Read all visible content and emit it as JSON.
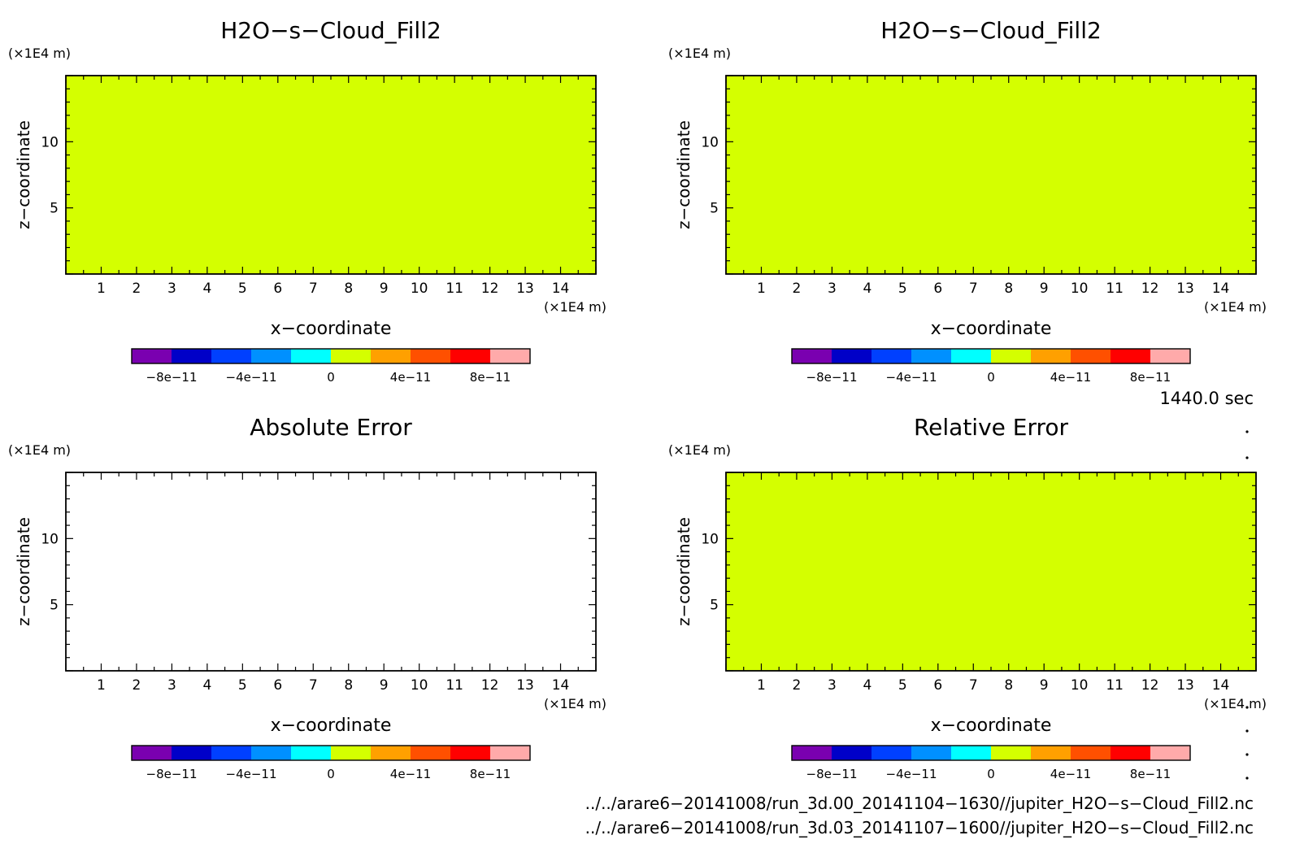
{
  "chart_data": [
    {
      "type": "heatmap",
      "title": "H2O−s−Cloud_Fill2",
      "xlabel": "x−coordinate",
      "ylabel": "z−coordinate",
      "x_unit": "(×1E4 m)",
      "y_unit": "(×1E4 m)",
      "xlim": [
        0,
        15
      ],
      "ylim": [
        0,
        15
      ],
      "x_ticks": [
        "1",
        "2",
        "3",
        "4",
        "5",
        "6",
        "7",
        "8",
        "9",
        "10",
        "11",
        "12",
        "13",
        "14"
      ],
      "y_ticks": [
        "5",
        "10"
      ],
      "field_value": 0,
      "fill_color": "#d4ff00",
      "colorbar": {
        "colors": [
          "#7a00b0",
          "#0000c8",
          "#0040ff",
          "#0090ff",
          "#00ffff",
          "#d4ff00",
          "#ffa000",
          "#ff5000",
          "#ff0000",
          "#ffaaaa"
        ],
        "labels": [
          "−8e−11",
          "−4e−11",
          "0",
          "4e−11",
          "8e−11"
        ]
      }
    },
    {
      "type": "heatmap",
      "title": "H2O−s−Cloud_Fill2",
      "xlabel": "x−coordinate",
      "ylabel": "z−coordinate",
      "x_unit": "(×1E4 m)",
      "y_unit": "(×1E4 m)",
      "xlim": [
        0,
        15
      ],
      "ylim": [
        0,
        15
      ],
      "x_ticks": [
        "1",
        "2",
        "3",
        "4",
        "5",
        "6",
        "7",
        "8",
        "9",
        "10",
        "11",
        "12",
        "13",
        "14"
      ],
      "y_ticks": [
        "5",
        "10"
      ],
      "field_value": 0,
      "fill_color": "#d4ff00",
      "colorbar": {
        "colors": [
          "#7a00b0",
          "#0000c8",
          "#0040ff",
          "#0090ff",
          "#00ffff",
          "#d4ff00",
          "#ffa000",
          "#ff5000",
          "#ff0000",
          "#ffaaaa"
        ],
        "labels": [
          "−8e−11",
          "−4e−11",
          "0",
          "4e−11",
          "8e−11"
        ]
      }
    },
    {
      "type": "heatmap",
      "title": "Absolute Error",
      "xlabel": "x−coordinate",
      "ylabel": "z−coordinate",
      "x_unit": "(×1E4 m)",
      "y_unit": "(×1E4 m)",
      "xlim": [
        0,
        15
      ],
      "ylim": [
        0,
        15
      ],
      "x_ticks": [
        "1",
        "2",
        "3",
        "4",
        "5",
        "6",
        "7",
        "8",
        "9",
        "10",
        "11",
        "12",
        "13",
        "14"
      ],
      "y_ticks": [
        "5",
        "10"
      ],
      "field_value": null,
      "fill_color": "#ffffff",
      "colorbar": {
        "colors": [
          "#7a00b0",
          "#0000c8",
          "#0040ff",
          "#0090ff",
          "#00ffff",
          "#d4ff00",
          "#ffa000",
          "#ff5000",
          "#ff0000",
          "#ffaaaa"
        ],
        "labels": [
          "−8e−11",
          "−4e−11",
          "0",
          "4e−11",
          "8e−11"
        ]
      }
    },
    {
      "type": "heatmap",
      "title": "Relative Error",
      "xlabel": "x−coordinate",
      "ylabel": "z−coordinate",
      "x_unit": "(×1E4 m)",
      "y_unit": "(×1E4 m)",
      "xlim": [
        0,
        15
      ],
      "ylim": [
        0,
        15
      ],
      "x_ticks": [
        "1",
        "2",
        "3",
        "4",
        "5",
        "6",
        "7",
        "8",
        "9",
        "10",
        "11",
        "12",
        "13",
        "14"
      ],
      "y_ticks": [
        "5",
        "10"
      ],
      "field_value": 0,
      "fill_color": "#d4ff00",
      "colorbar": {
        "colors": [
          "#7a00b0",
          "#0000c8",
          "#0040ff",
          "#0090ff",
          "#00ffff",
          "#d4ff00",
          "#ffa000",
          "#ff5000",
          "#ff0000",
          "#ffaaaa"
        ],
        "labels": [
          "−8e−11",
          "−4e−11",
          "0",
          "4e−11",
          "8e−11"
        ]
      }
    }
  ],
  "time_label": "1440.0 sec",
  "file_paths": [
    "../../arare6−20141008/run_3d.00_20141104−1630//jupiter_H2O−s−Cloud_Fill2.nc",
    "../../arare6−20141008/run_3d.03_20141107−1600//jupiter_H2O−s−Cloud_Fill2.nc"
  ]
}
